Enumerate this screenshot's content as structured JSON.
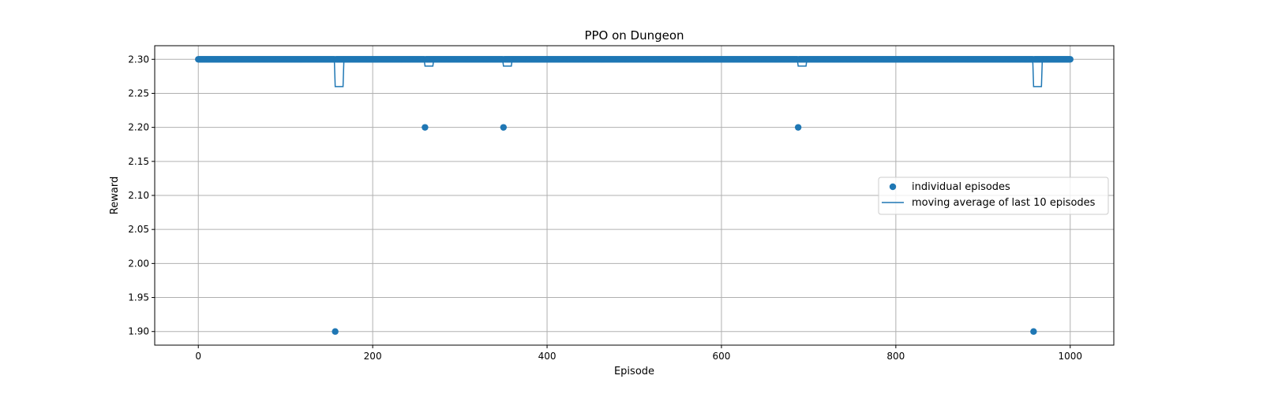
{
  "chart_data": {
    "type": "scatter",
    "title": "PPO on Dungeon",
    "xlabel": "Episode",
    "ylabel": "Reward",
    "xlim": [
      -50,
      1050
    ],
    "ylim": [
      1.88,
      2.32
    ],
    "xticks": [
      0,
      200,
      400,
      600,
      800,
      1000
    ],
    "yticks": [
      1.9,
      1.95,
      2.0,
      2.05,
      2.1,
      2.15,
      2.2,
      2.25,
      2.3
    ],
    "grid": true,
    "legend_position": "center-right",
    "series_color": "#1f77b4",
    "episode_count": 1001,
    "baseline_reward": 2.3,
    "series": [
      {
        "name": "individual episodes",
        "kind": "scatter",
        "dips": [
          {
            "x": 157,
            "y": 1.9
          },
          {
            "x": 260,
            "y": 2.2
          },
          {
            "x": 350,
            "y": 2.2
          },
          {
            "x": 688,
            "y": 2.2
          },
          {
            "x": 958,
            "y": 1.9
          }
        ]
      },
      {
        "name": "moving average of last 10 episodes",
        "kind": "line",
        "window": 10
      }
    ]
  }
}
